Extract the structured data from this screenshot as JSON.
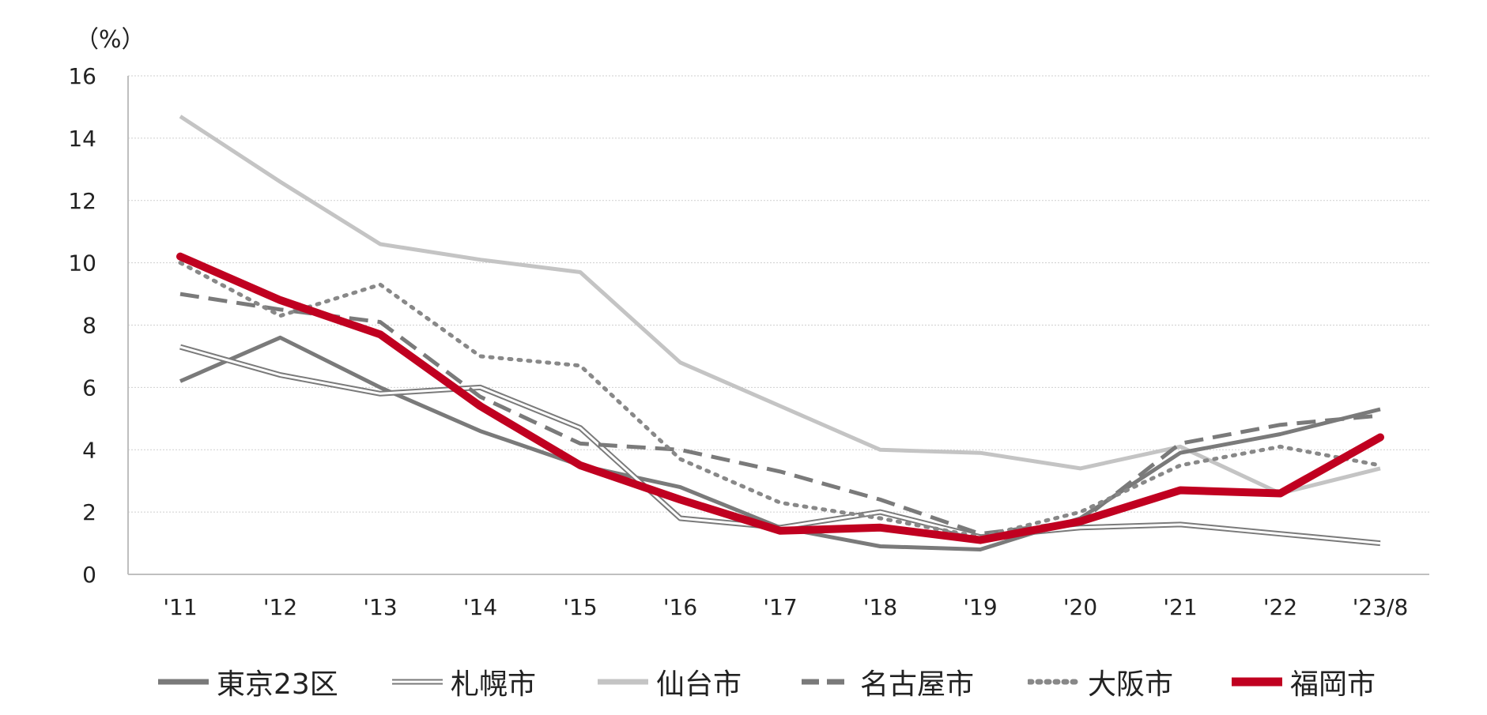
{
  "chart_data": {
    "type": "line",
    "unit_label": "（%）",
    "categories": [
      "'11",
      "'12",
      "'13",
      "'14",
      "'15",
      "'16",
      "'17",
      "'18",
      "'19",
      "'20",
      "'21",
      "'22",
      "'23/8"
    ],
    "ylim": [
      0,
      16
    ],
    "yticks": [
      "0",
      "2",
      "4",
      "6",
      "8",
      "10",
      "12",
      "14",
      "16"
    ],
    "grid": true,
    "legend_position": "bottom",
    "series": [
      {
        "name": "東京23区",
        "color": "#7a7a7a",
        "style": "solid",
        "values": [
          6.2,
          7.6,
          6.0,
          4.6,
          3.5,
          2.8,
          1.5,
          0.9,
          0.8,
          1.8,
          3.9,
          4.5,
          5.3
        ]
      },
      {
        "name": "札幌市",
        "color": "#7a7a7a",
        "style": "double",
        "values": [
          7.3,
          6.4,
          5.8,
          6.0,
          4.7,
          1.8,
          1.5,
          2.0,
          1.2,
          1.5,
          1.6,
          1.3,
          1.0
        ]
      },
      {
        "name": "仙台市",
        "color": "#c4c4c4",
        "style": "solid",
        "values": [
          14.7,
          12.6,
          10.6,
          10.1,
          9.7,
          6.8,
          5.4,
          4.0,
          3.9,
          3.4,
          4.1,
          2.6,
          3.4
        ]
      },
      {
        "name": "名古屋市",
        "color": "#7a7a7a",
        "style": "dashed",
        "values": [
          9.0,
          8.5,
          8.1,
          5.7,
          4.2,
          4.0,
          3.3,
          2.4,
          1.3,
          1.7,
          4.2,
          4.8,
          5.1
        ]
      },
      {
        "name": "大阪市",
        "color": "#888888",
        "style": "dotted",
        "values": [
          10.0,
          8.3,
          9.3,
          7.0,
          6.7,
          3.7,
          2.3,
          1.8,
          1.2,
          2.0,
          3.5,
          4.1,
          3.5
        ]
      },
      {
        "name": "福岡市",
        "color": "#c00020",
        "style": "bold",
        "values": [
          10.2,
          8.8,
          7.7,
          5.4,
          3.5,
          2.4,
          1.4,
          1.5,
          1.1,
          1.7,
          2.7,
          2.6,
          4.4
        ]
      }
    ]
  }
}
